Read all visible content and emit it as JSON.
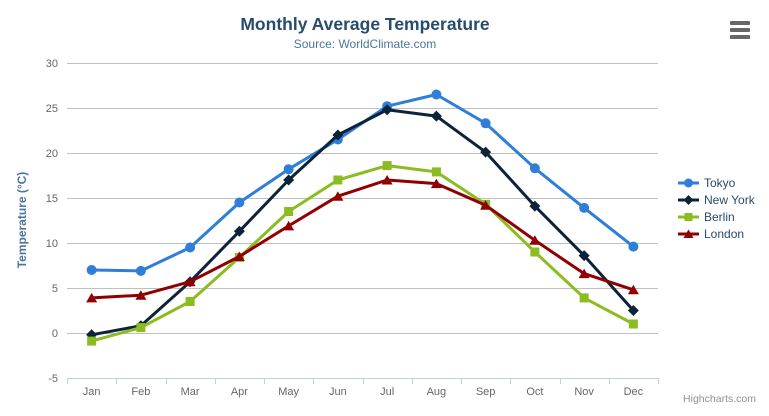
{
  "chart_data": {
    "type": "line",
    "title": "Monthly Average Temperature",
    "subtitle": "Source: WorldClimate.com",
    "categories": [
      "Jan",
      "Feb",
      "Mar",
      "Apr",
      "May",
      "Jun",
      "Jul",
      "Aug",
      "Sep",
      "Oct",
      "Nov",
      "Dec"
    ],
    "xlabel": "",
    "ylabel": "Temperature (°C)",
    "ylim": [
      -5,
      30
    ],
    "yticks": [
      -5,
      0,
      5,
      10,
      15,
      20,
      25,
      30
    ],
    "grid": true,
    "legend_position": "right",
    "series": [
      {
        "name": "Tokyo",
        "color": "#2f7ed8",
        "marker": "circle",
        "values": [
          7.0,
          6.9,
          9.5,
          14.5,
          18.2,
          21.5,
          25.2,
          26.5,
          23.3,
          18.3,
          13.9,
          9.6
        ]
      },
      {
        "name": "New York",
        "color": "#0d233a",
        "marker": "diamond",
        "values": [
          -0.2,
          0.8,
          5.7,
          11.3,
          17.0,
          22.0,
          24.8,
          24.1,
          20.1,
          14.1,
          8.6,
          2.5
        ]
      },
      {
        "name": "Berlin",
        "color": "#8bbc21",
        "marker": "square",
        "values": [
          -0.9,
          0.6,
          3.5,
          8.4,
          13.5,
          17.0,
          18.6,
          17.9,
          14.3,
          9.0,
          3.9,
          1.0
        ]
      },
      {
        "name": "London",
        "color": "#910000",
        "marker": "triangle",
        "values": [
          3.9,
          4.2,
          5.7,
          8.5,
          11.9,
          15.2,
          17.0,
          16.6,
          14.2,
          10.3,
          6.6,
          4.8
        ]
      }
    ]
  },
  "export_menu": {
    "icon": "hamburger-menu-icon"
  },
  "credits": {
    "label": "Highcharts.com"
  },
  "theme": {
    "background": "#ffffff",
    "title_color": "#274b6d",
    "subtitle_color": "#4d759e",
    "axis_title_color": "#4d759e",
    "tick_label_color": "#666666",
    "grid_color": "#c0c0c0",
    "axis_line_color": "#c0d0e0",
    "legend_text_color": "#274b6d",
    "credits_color": "#909090",
    "menu_icon_color": "#666666"
  }
}
